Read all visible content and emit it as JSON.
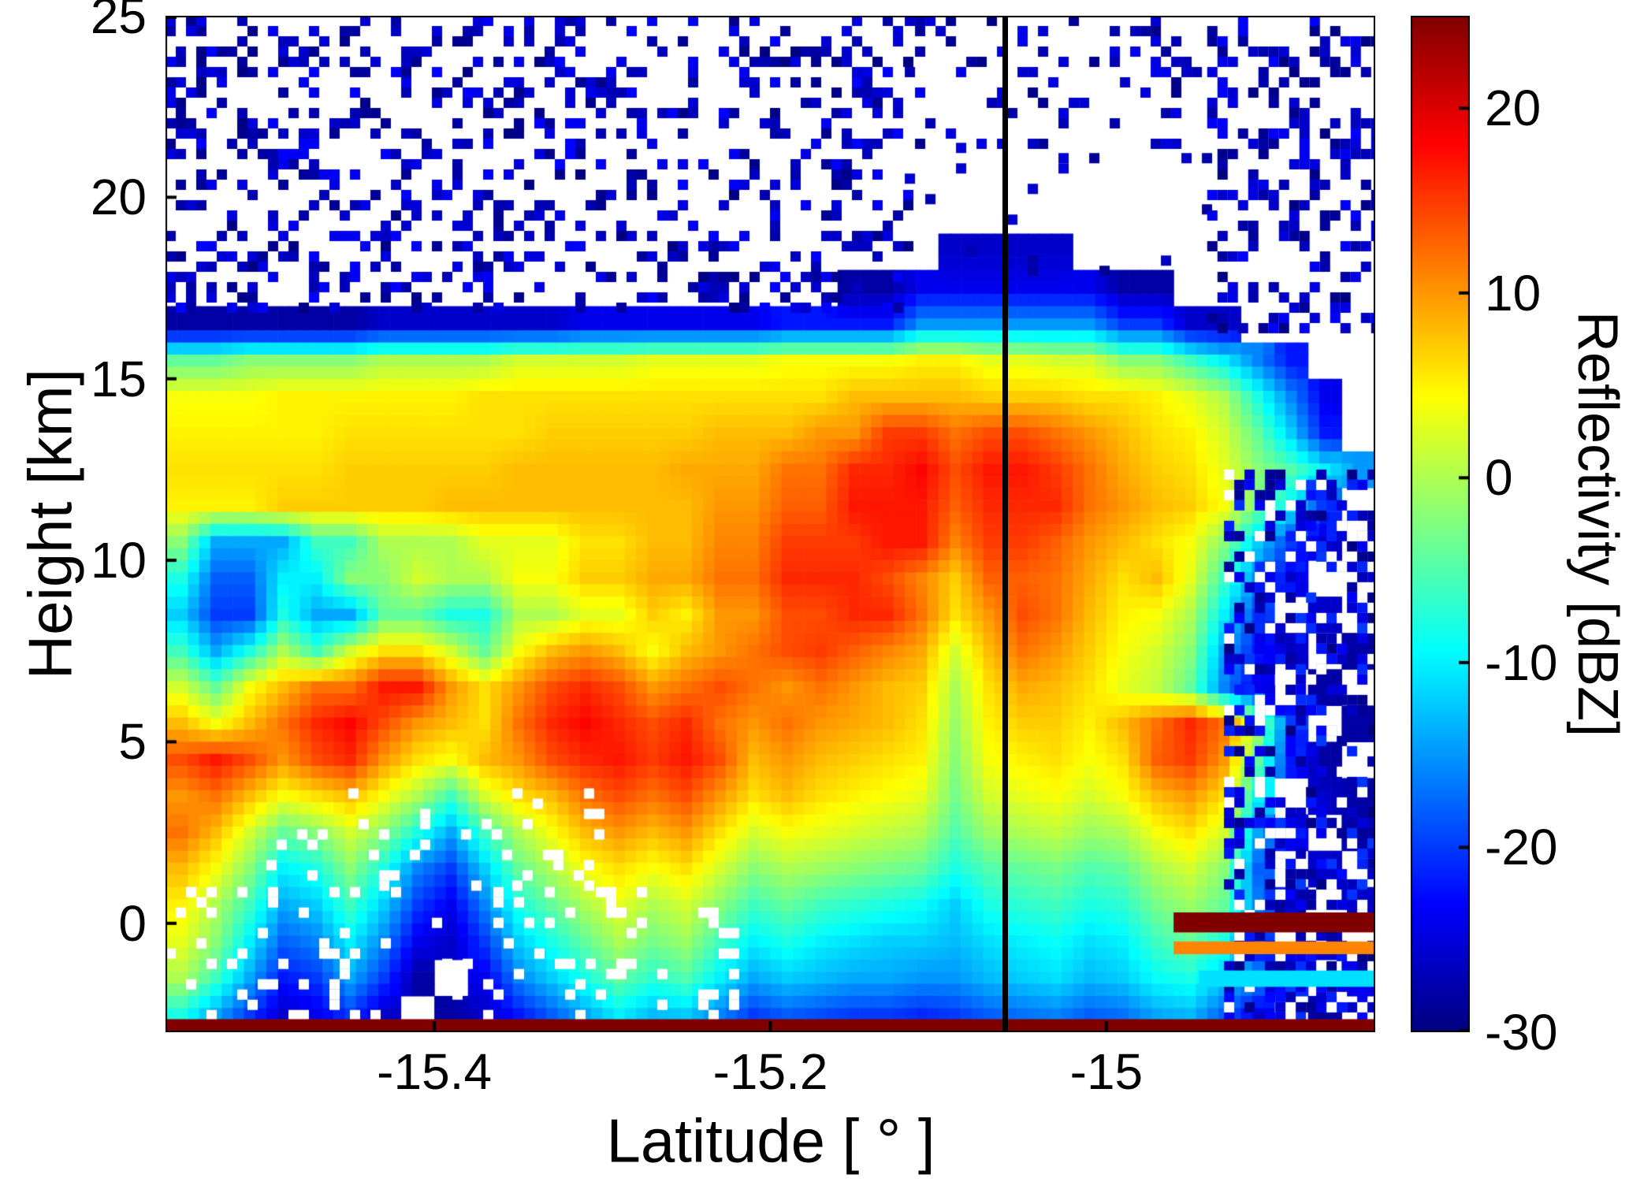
{
  "chart_data": {
    "type": "heatmap",
    "title": "",
    "xlabel": "Latitude [ ° ]",
    "ylabel": "Height [km]",
    "x_range": [
      -15.56,
      -14.84
    ],
    "y_range": [
      -3,
      25
    ],
    "x_ticks": [
      {
        "value": -15.4,
        "label": "-15.4"
      },
      {
        "value": -15.2,
        "label": "-15.2"
      },
      {
        "value": -15.0,
        "label": "-15"
      }
    ],
    "y_ticks": [
      {
        "value": 25,
        "label": "25"
      },
      {
        "value": 20,
        "label": "20"
      },
      {
        "value": 15,
        "label": "15"
      },
      {
        "value": 10,
        "label": "10"
      },
      {
        "value": 5,
        "label": "5"
      },
      {
        "value": 0,
        "label": "0"
      }
    ],
    "colorbar": {
      "label": "Reflectivity [dBZ]",
      "min": -30,
      "max": 25,
      "colormap": "jet",
      "ticks": [
        {
          "value": 20,
          "label": "20"
        },
        {
          "value": 10,
          "label": "10"
        },
        {
          "value": 0,
          "label": "0"
        },
        {
          "value": -10,
          "label": "-10"
        },
        {
          "value": -20,
          "label": "-20"
        },
        {
          "value": -30,
          "label": "-30"
        }
      ]
    },
    "annotations": {
      "vertical_line_lat": -15.06,
      "vertical_line_color": "#000000"
    },
    "grid": {
      "orientation": "rows top(25km) to bottom(-3km), cols west(-15.56) to east(-14.84), dBZ, null = no echo",
      "nrows": 28,
      "ncols": 36,
      "lat_min": -15.56,
      "lat_max": -14.84,
      "h_max": 25,
      "h_min": -3,
      "values": [
        [
          null,
          null,
          null,
          null,
          null,
          null,
          null,
          null,
          null,
          null,
          null,
          null,
          null,
          null,
          null,
          null,
          null,
          null,
          null,
          null,
          null,
          null,
          null,
          null,
          null,
          null,
          null,
          null,
          null,
          null,
          null,
          null,
          null,
          null,
          null,
          null
        ],
        [
          null,
          null,
          null,
          null,
          null,
          null,
          null,
          null,
          null,
          null,
          null,
          null,
          null,
          null,
          null,
          null,
          null,
          null,
          null,
          null,
          null,
          null,
          null,
          null,
          null,
          null,
          null,
          null,
          null,
          null,
          null,
          null,
          null,
          null,
          null,
          null
        ],
        [
          null,
          null,
          null,
          null,
          null,
          null,
          null,
          null,
          null,
          null,
          null,
          null,
          null,
          null,
          null,
          null,
          null,
          null,
          null,
          null,
          null,
          null,
          null,
          null,
          null,
          null,
          null,
          null,
          null,
          null,
          null,
          null,
          null,
          null,
          null,
          null
        ],
        [
          null,
          null,
          null,
          null,
          null,
          null,
          null,
          null,
          null,
          null,
          null,
          null,
          null,
          null,
          null,
          null,
          null,
          null,
          null,
          null,
          null,
          null,
          null,
          null,
          null,
          null,
          null,
          null,
          null,
          null,
          null,
          null,
          null,
          null,
          null,
          null
        ],
        [
          null,
          null,
          null,
          null,
          null,
          null,
          null,
          null,
          null,
          null,
          null,
          null,
          null,
          null,
          null,
          null,
          null,
          null,
          null,
          null,
          null,
          null,
          null,
          null,
          null,
          null,
          null,
          null,
          null,
          null,
          null,
          null,
          null,
          null,
          null,
          null
        ],
        [
          null,
          null,
          null,
          null,
          null,
          null,
          null,
          null,
          null,
          null,
          null,
          null,
          null,
          null,
          null,
          null,
          null,
          null,
          null,
          null,
          null,
          null,
          null,
          null,
          null,
          null,
          null,
          null,
          null,
          null,
          null,
          null,
          null,
          null,
          null,
          null
        ],
        [
          null,
          null,
          null,
          null,
          null,
          null,
          null,
          null,
          null,
          null,
          null,
          null,
          null,
          null,
          null,
          null,
          null,
          null,
          null,
          null,
          null,
          null,
          null,
          -26,
          -26,
          -26,
          -26,
          null,
          null,
          null,
          null,
          null,
          null,
          null,
          null,
          null
        ],
        [
          null,
          null,
          null,
          null,
          null,
          null,
          null,
          null,
          null,
          null,
          null,
          null,
          null,
          null,
          null,
          null,
          null,
          null,
          null,
          null,
          -28,
          -28,
          -24,
          -24,
          -24,
          -24,
          -24,
          -24,
          -28,
          -28,
          null,
          null,
          null,
          null,
          null,
          null
        ],
        [
          -28,
          -28,
          -28,
          -28,
          -28,
          -28,
          -26,
          -26,
          -26,
          -26,
          -26,
          -26,
          -24,
          -24,
          -24,
          -24,
          -24,
          -24,
          -22,
          -22,
          -22,
          -22,
          -15,
          -15,
          -15,
          -15,
          -15,
          -15,
          -20,
          -20,
          -26,
          -26,
          null,
          null,
          null,
          null
        ],
        [
          -4,
          -4,
          -2,
          -2,
          -2,
          -2,
          0,
          0,
          0,
          0,
          2,
          2,
          2,
          2,
          3,
          3,
          3,
          3,
          4,
          4,
          4,
          4,
          5,
          5,
          3,
          3,
          2,
          2,
          -2,
          -2,
          -6,
          -10,
          -16,
          -22,
          null,
          null
        ],
        [
          4,
          4,
          4,
          5,
          5,
          5,
          5,
          5,
          5,
          6,
          6,
          6,
          6,
          6,
          6,
          6,
          6,
          6,
          6,
          6,
          8,
          8,
          8,
          8,
          7,
          7,
          7,
          6,
          6,
          5,
          3,
          0,
          -8,
          -16,
          -24,
          null
        ],
        [
          5,
          5,
          5,
          5,
          5,
          6,
          6,
          6,
          6,
          6,
          6,
          7,
          7,
          7,
          7,
          7,
          8,
          8,
          8,
          10,
          10,
          15,
          15,
          12,
          14,
          14,
          12,
          10,
          8,
          6,
          5,
          2,
          -4,
          -12,
          -22,
          null
        ],
        [
          6,
          6,
          6,
          6,
          6,
          7,
          7,
          7,
          7,
          7,
          8,
          8,
          8,
          8,
          8,
          9,
          9,
          9,
          12,
          12,
          16,
          16,
          18,
          14,
          17,
          17,
          15,
          12,
          9,
          7,
          6,
          3,
          -2,
          -5,
          -10,
          -15
        ],
        [
          5,
          5,
          5,
          7,
          7,
          7,
          7,
          7,
          8,
          8,
          8,
          8,
          8,
          8,
          8,
          8,
          10,
          10,
          13,
          13,
          17,
          17,
          17,
          13,
          16,
          16,
          16,
          12,
          10,
          8,
          7,
          4,
          -3,
          -10,
          -20,
          null
        ],
        [
          -2,
          -14,
          -14,
          -14,
          -6,
          -6,
          0,
          0,
          0,
          3,
          3,
          3,
          6,
          6,
          8,
          8,
          11,
          11,
          15,
          15,
          15,
          17,
          17,
          11,
          15,
          15,
          13,
          10,
          8,
          6,
          4,
          -2,
          -12,
          -20,
          -26,
          null
        ],
        [
          -8,
          -18,
          -18,
          -10,
          -10,
          -2,
          -2,
          2,
          0,
          0,
          4,
          4,
          7,
          7,
          9,
          9,
          12,
          12,
          16,
          16,
          16,
          14,
          11,
          7,
          13,
          13,
          12,
          9,
          6,
          8,
          3,
          -6,
          -16,
          -24,
          null,
          null
        ],
        [
          -12,
          -20,
          -20,
          -8,
          -14,
          -14,
          -4,
          -4,
          -8,
          -8,
          0,
          0,
          3,
          3,
          7,
          5,
          10,
          10,
          14,
          14,
          16,
          16,
          12,
          6,
          10,
          14,
          12,
          8,
          5,
          4,
          0,
          -10,
          -20,
          null,
          -26,
          null
        ],
        [
          -6,
          -14,
          -8,
          0,
          -6,
          2,
          6,
          6,
          2,
          -4,
          4,
          8,
          10,
          8,
          4,
          8,
          10,
          12,
          14,
          15,
          13,
          11,
          9,
          2,
          8,
          12,
          10,
          7,
          4,
          2,
          -2,
          -14,
          -22,
          -26,
          null,
          -28
        ],
        [
          2,
          -4,
          4,
          8,
          12,
          12,
          17,
          17,
          10,
          6,
          10,
          14,
          16,
          14,
          10,
          12,
          14,
          12,
          10,
          12,
          10,
          8,
          7,
          0,
          6,
          9,
          8,
          6,
          3,
          1,
          -4,
          -16,
          -24,
          null,
          -28,
          null
        ],
        [
          8,
          4,
          8,
          12,
          16,
          18,
          14,
          10,
          8,
          6,
          12,
          16,
          18,
          16,
          14,
          16,
          12,
          10,
          12,
          10,
          9,
          8,
          6,
          -1,
          5,
          7,
          7,
          5,
          8,
          12,
          16,
          12,
          0,
          -20,
          null,
          -28
        ],
        [
          14,
          17,
          14,
          10,
          14,
          16,
          10,
          6,
          4,
          8,
          10,
          14,
          16,
          17,
          15,
          17,
          14,
          8,
          10,
          8,
          7,
          6,
          5,
          -2,
          4,
          5,
          6,
          4,
          6,
          13,
          15,
          10,
          -4,
          -22,
          -28,
          null
        ],
        [
          10,
          12,
          8,
          4,
          6,
          8,
          4,
          0,
          -6,
          2,
          6,
          8,
          12,
          14,
          12,
          14,
          10,
          6,
          8,
          6,
          5,
          4,
          3,
          -3,
          2,
          3,
          4,
          2,
          4,
          8,
          10,
          6,
          -10,
          null,
          -26,
          -28
        ],
        [
          12,
          8,
          2,
          -4,
          -2,
          2,
          -2,
          -8,
          -14,
          -6,
          0,
          4,
          8,
          10,
          8,
          10,
          6,
          2,
          4,
          3,
          2,
          1,
          0,
          -5,
          -1,
          0,
          1,
          -1,
          0,
          4,
          6,
          2,
          -14,
          -24,
          null,
          -28
        ],
        [
          8,
          4,
          -2,
          -10,
          -8,
          -2,
          -8,
          -16,
          -20,
          -12,
          -4,
          0,
          4,
          6,
          4,
          6,
          2,
          -2,
          0,
          -1,
          -2,
          -3,
          -4,
          -8,
          -5,
          -4,
          -3,
          -5,
          -4,
          0,
          2,
          -2,
          -18,
          null,
          -26,
          null
        ],
        [
          5,
          0,
          -6,
          -14,
          -12,
          -6,
          -12,
          -20,
          -24,
          -16,
          -8,
          -4,
          0,
          3,
          0,
          2,
          -2,
          -6,
          -4,
          -6,
          -7,
          -8,
          -9,
          -12,
          -8,
          -7,
          -6,
          -8,
          -7,
          -3,
          -1,
          -4,
          -16,
          -24,
          null,
          -26
        ],
        [
          3,
          -2,
          -10,
          -18,
          -16,
          -10,
          -16,
          -24,
          -26,
          -20,
          -12,
          -8,
          -4,
          0,
          -3,
          -1,
          -6,
          -10,
          -8,
          -10,
          -11,
          -12,
          -12,
          -13,
          -11,
          -10,
          -9,
          -11,
          -10,
          -6,
          -4,
          -8,
          -20,
          null,
          -26,
          null
        ],
        [
          0,
          -6,
          -14,
          -22,
          -20,
          -14,
          -20,
          -28,
          null,
          -24,
          -16,
          -12,
          -8,
          -4,
          -7,
          -5,
          -10,
          -14,
          -12,
          -13,
          -14,
          -14,
          -15,
          -15,
          -13,
          -12,
          -11,
          -13,
          -12,
          -9,
          -8,
          -12,
          -16,
          -20,
          null,
          -24
        ],
        [
          -8,
          -14,
          -20,
          -26,
          -24,
          -20,
          -26,
          null,
          -28,
          -26,
          -22,
          -18,
          -14,
          -10,
          -13,
          -12,
          -16,
          -20,
          -18,
          -19,
          -20,
          -20,
          -21,
          -20,
          -18,
          -17,
          -16,
          -18,
          -17,
          -14,
          -13,
          -18,
          -24,
          null,
          -28,
          null
        ]
      ]
    },
    "features": [
      {
        "name": "surface-echo",
        "lat": [
          -15.56,
          -14.84
        ],
        "h": [
          -3.0,
          -2.64
        ],
        "v": 25
      },
      {
        "name": "bright-band",
        "lat": [
          -14.96,
          -14.84
        ],
        "h": [
          -0.25,
          0.3
        ],
        "v": 25
      },
      {
        "name": "bright-band-lower",
        "lat": [
          -14.96,
          -14.84
        ],
        "h": [
          -0.85,
          -0.5
        ],
        "v": 11
      },
      {
        "name": "low-cyan-streak",
        "lat": [
          -14.945,
          -14.84
        ],
        "h": [
          -1.75,
          -1.3
        ],
        "v": -11
      }
    ],
    "speckle": [
      {
        "name": "upper-left-noise",
        "lat": [
          -15.56,
          -15.12
        ],
        "h": [
          17.0,
          25
        ],
        "density": 0.3,
        "values": [
          -30,
          -23
        ]
      },
      {
        "name": "upper-center-top-noise",
        "lat": [
          -15.12,
          -14.94
        ],
        "h": [
          21.5,
          25
        ],
        "density": 0.2,
        "values": [
          -30,
          -24
        ]
      },
      {
        "name": "upper-center-gap",
        "lat": [
          -15.12,
          -14.94
        ],
        "h": [
          18.0,
          21.5
        ],
        "density": 0.04,
        "values": [
          -30,
          -25
        ]
      },
      {
        "name": "upper-right-noise",
        "lat": [
          -14.94,
          -14.84
        ],
        "h": [
          16.3,
          25
        ],
        "density": 0.36,
        "values": [
          -30,
          -23
        ]
      },
      {
        "name": "right-mid-noise",
        "lat": [
          -14.93,
          -14.84
        ],
        "h": [
          -2.6,
          12.5
        ],
        "density": 0.42,
        "values": [
          -30,
          -20
        ]
      },
      {
        "name": "right-mid-white-holes",
        "lat": [
          -14.93,
          -14.84
        ],
        "h": [
          -2.6,
          12.5
        ],
        "density": 0.1,
        "white": true
      },
      {
        "name": "bottom-left-white-holes",
        "lat": [
          -15.56,
          -15.22
        ],
        "h": [
          -2.7,
          1.0
        ],
        "density": 0.15,
        "white": true
      },
      {
        "name": "left-mid-white-holes",
        "lat": [
          -15.5,
          -15.3
        ],
        "h": [
          1.0,
          4.0
        ],
        "density": 0.08,
        "white": true
      }
    ]
  }
}
